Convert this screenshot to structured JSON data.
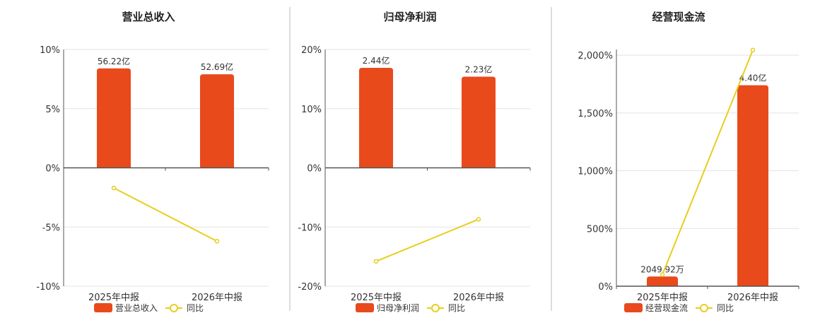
{
  "colors": {
    "bar": "#E84A1C",
    "line": "#E8CE1C",
    "grid": "#e3e3e3",
    "axis": "#555555",
    "divider": "#bbbbbb"
  },
  "chart_data": [
    {
      "type": "bar",
      "title": "营业总收入",
      "categories": [
        "2025年中报",
        "2026年中报"
      ],
      "ylim": [
        -10,
        10
      ],
      "yticks": [
        10,
        5,
        0,
        -5,
        -10
      ],
      "ytick_labels": [
        "10%",
        "5%",
        "0%",
        "-5%",
        "-10%"
      ],
      "grid": true,
      "series": [
        {
          "name": "营业总收入",
          "kind": "bar",
          "values": [
            8.4,
            7.9
          ],
          "labels": [
            "56.22亿",
            "52.69亿"
          ]
        },
        {
          "name": "同比",
          "kind": "line",
          "values": [
            -1.7,
            -6.2
          ]
        }
      ],
      "legend_position": "bottom"
    },
    {
      "type": "bar",
      "title": "归母净利润",
      "categories": [
        "2025年中报",
        "2026年中报"
      ],
      "ylim": [
        -20,
        20
      ],
      "yticks": [
        20,
        10,
        0,
        -10,
        -20
      ],
      "ytick_labels": [
        "20%",
        "10%",
        "0%",
        "-10%",
        "-20%"
      ],
      "grid": true,
      "series": [
        {
          "name": "归母净利润",
          "kind": "bar",
          "values": [
            16.9,
            15.4
          ],
          "labels": [
            "2.44亿",
            "2.23亿"
          ]
        },
        {
          "name": "同比",
          "kind": "line",
          "values": [
            -15.8,
            -8.7
          ]
        }
      ],
      "legend_position": "bottom"
    },
    {
      "type": "bar",
      "title": "经营现金流",
      "categories": [
        "2025年中报",
        "2026年中报"
      ],
      "ylim": [
        0,
        2050
      ],
      "yticks": [
        2000,
        1500,
        1000,
        500,
        0
      ],
      "ytick_labels": [
        "2,000%",
        "1,500%",
        "1,000%",
        "500%",
        "0%"
      ],
      "grid": true,
      "series": [
        {
          "name": "经营现金流",
          "kind": "bar",
          "values": [
            84,
            1740
          ],
          "labels": [
            "2049.92万",
            "4.40亿"
          ]
        },
        {
          "name": "同比",
          "kind": "line",
          "values": [
            100,
            2045
          ]
        }
      ],
      "legend_position": "bottom"
    }
  ]
}
